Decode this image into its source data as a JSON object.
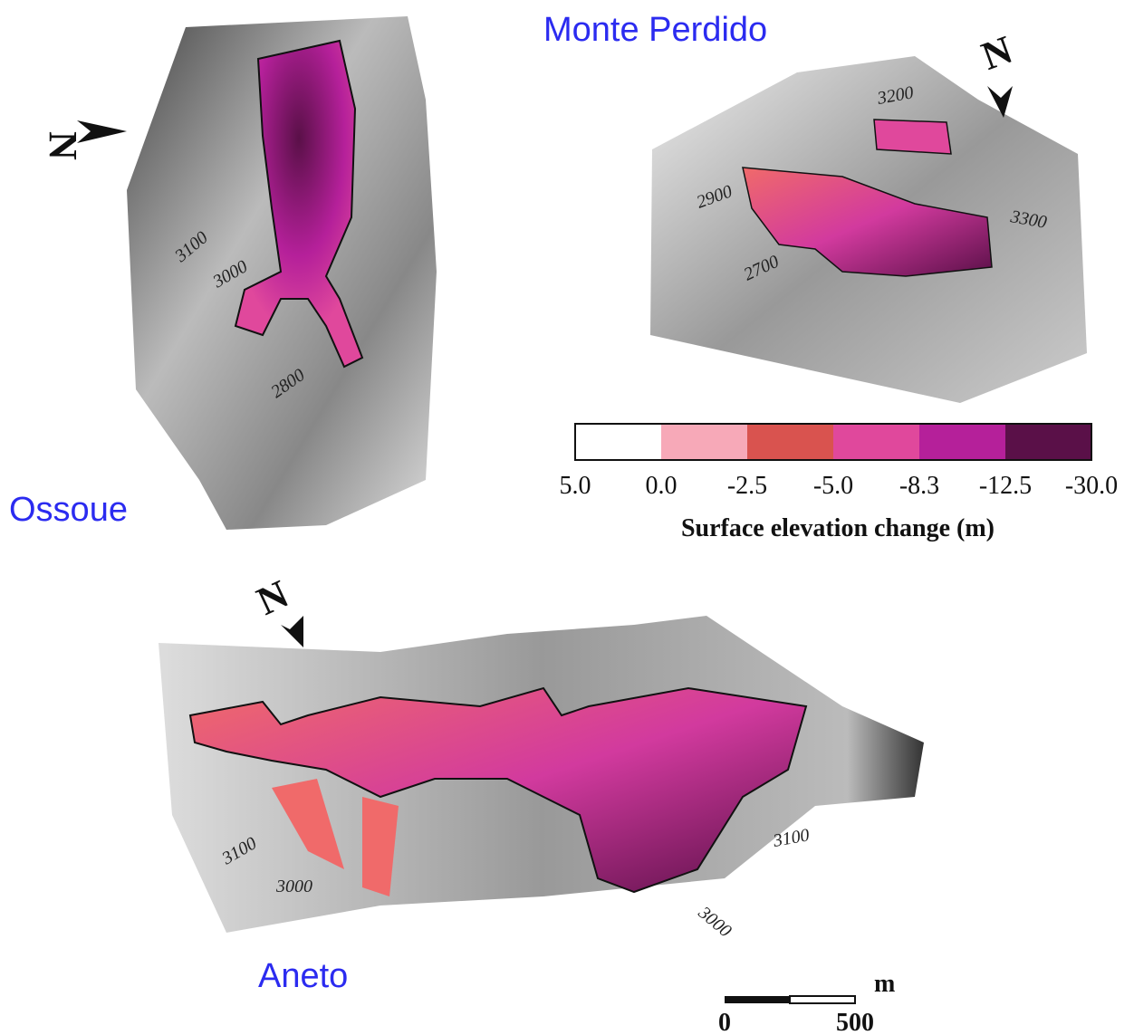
{
  "panels": [
    {
      "name": "Ossoue",
      "north": "N",
      "contours": [
        "3100",
        "3000",
        "2800"
      ]
    },
    {
      "name": "Monte Perdido",
      "north": "N",
      "contours": [
        "3200",
        "2900",
        "3300",
        "2700"
      ]
    },
    {
      "name": "Aneto",
      "north": "N",
      "contours": [
        "3100",
        "3000",
        "3100",
        "3000"
      ]
    }
  ],
  "legend": {
    "title": "Surface elevation change (m)",
    "ticks": [
      "5.0",
      "0.0",
      "-2.5",
      "-5.0",
      "-8.3",
      "-12.5",
      "-30.0"
    ],
    "colors": [
      "#ffffff",
      "#f7a9b8",
      "#d9534f",
      "#e0489c",
      "#b5209a",
      "#5a1048"
    ]
  },
  "scale": {
    "unit": "m",
    "ticks": [
      "0",
      "500"
    ]
  }
}
